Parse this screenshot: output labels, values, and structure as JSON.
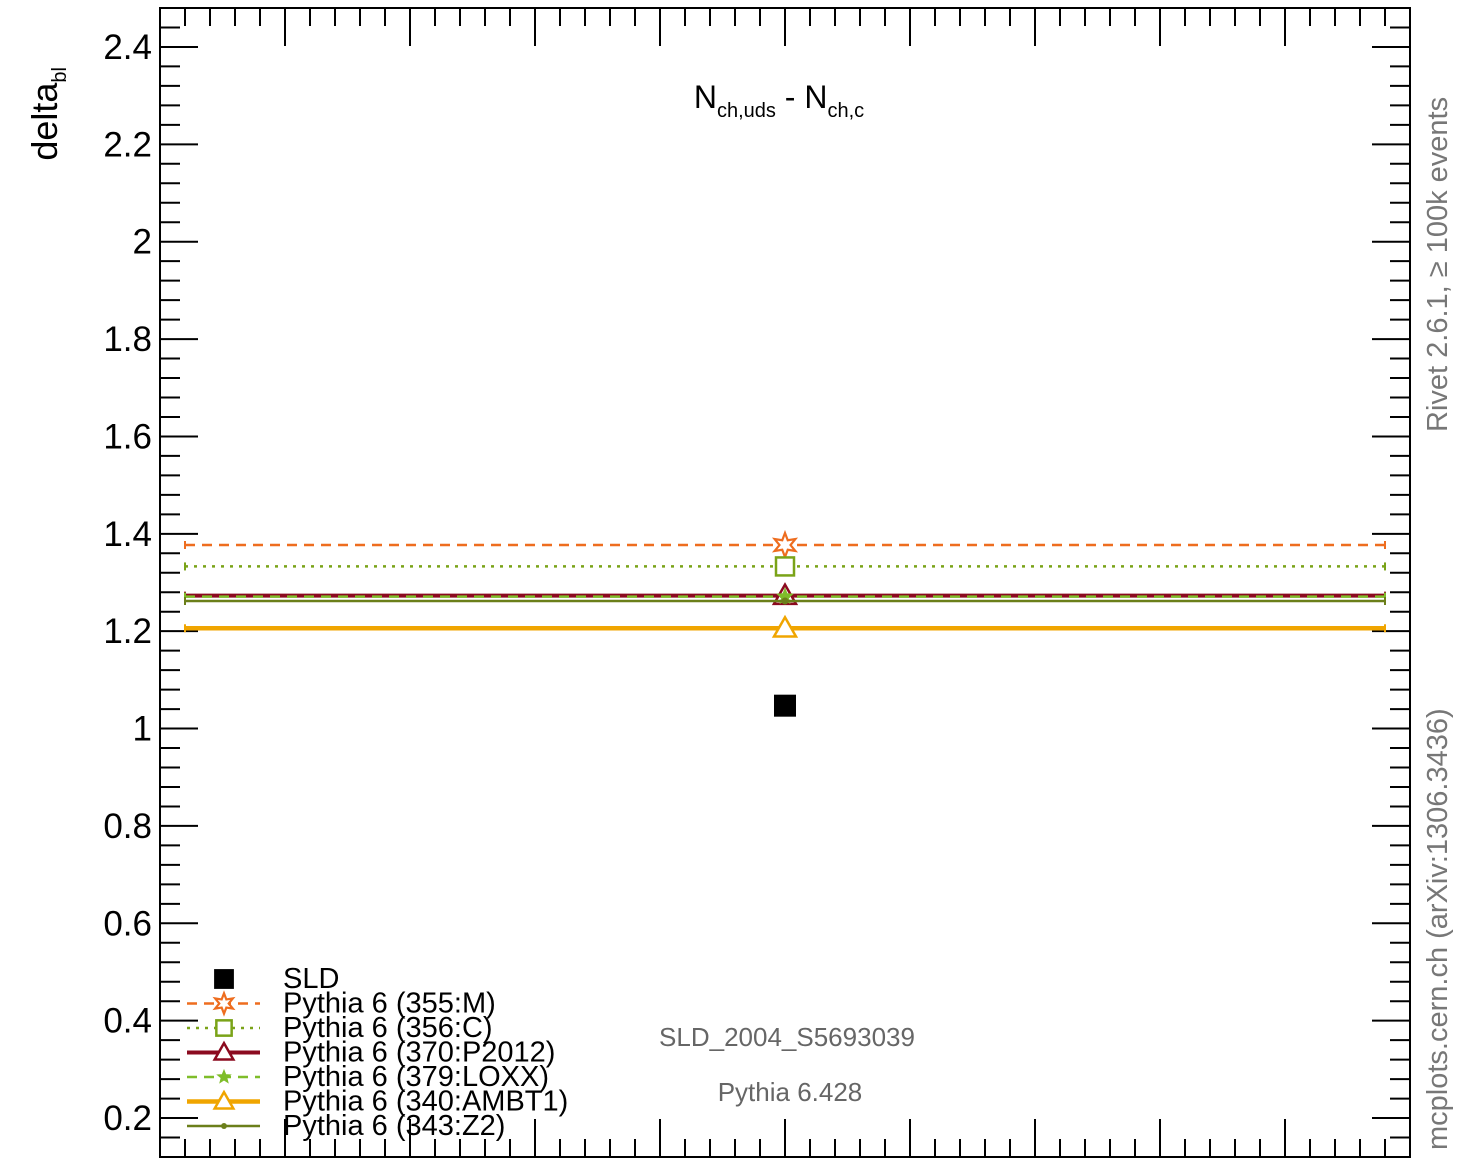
{
  "chart_data": {
    "type": "line",
    "title": "",
    "ylabel": "delta",
    "ylabel_subscript": "bl",
    "ylim": [
      0.12,
      2.48
    ],
    "yticks": [
      0.2,
      0.4,
      0.6,
      0.8,
      1,
      1.2,
      1.4,
      1.6,
      1.8,
      2,
      2.2,
      2.4
    ],
    "ytick_labels": [
      "0.2",
      "0.4",
      "0.6",
      "0.8",
      "1",
      "1.2",
      "1.4",
      "1.6",
      "1.8",
      "2",
      "2.2",
      "2.4"
    ],
    "xlim": [
      0,
      1
    ],
    "x": 0.5,
    "x_range": [
      0.02,
      0.98
    ],
    "subtitle": {
      "part1": "N",
      "sub1": "ch,uds",
      "mid": " - ",
      "part2": "N",
      "sub2": "ch,c"
    },
    "side_top": "Rivet 2.6.1, ≥ 100k events",
    "side_bottom": "mcplots.cern.ch (arXiv:1306.3436)",
    "annotations": [
      "SLD_2004_S5693039",
      "Pythia 6.428"
    ],
    "legend_position": "bottom-left",
    "data": {
      "name": "SLD",
      "value": 1.047,
      "color": "#000000",
      "marker": "square"
    },
    "series": [
      {
        "name": "Pythia 6 (355:M)",
        "value": 1.377,
        "color": "#ee6d1f",
        "dash": "10,7",
        "width": 2.5,
        "marker": "star-hollow"
      },
      {
        "name": "Pythia 6 (356:C)",
        "value": 1.333,
        "color": "#7aa318",
        "dash": "3,6",
        "width": 2.5,
        "marker": "square-hollow"
      },
      {
        "name": "Pythia 6 (370:P2012)",
        "value": 1.273,
        "color": "#8b0a1f",
        "dash": "",
        "width": 4,
        "marker": "triangle-hollow"
      },
      {
        "name": "Pythia 6 (379:LOXX)",
        "value": 1.271,
        "color": "#7fbd2a",
        "dash": "10,7",
        "width": 2.5,
        "marker": "star-filled"
      },
      {
        "name": "Pythia 6 (340:AMBT1)",
        "value": 1.206,
        "color": "#f0a500",
        "dash": "",
        "width": 4.5,
        "marker": "triangle-hollow"
      },
      {
        "name": "Pythia 6 (343:Z2)",
        "value": 1.262,
        "color": "#6b7f1a",
        "dash": "",
        "width": 2.5,
        "marker": "dot"
      }
    ]
  }
}
